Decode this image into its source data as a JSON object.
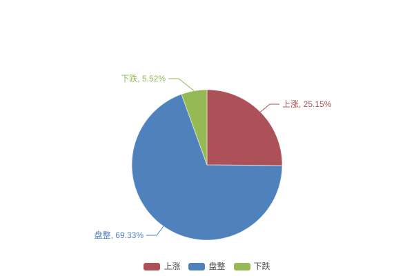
{
  "chart_data": {
    "type": "pie",
    "title": "",
    "background": "#ffffff",
    "start_angle": "12-o-clock-clockwise",
    "value_unit": "%",
    "slices": [
      {
        "name": "上涨",
        "value": 25.15,
        "pct_label": "25.15%",
        "label": "上涨, 25.15%",
        "color": "#AC5157"
      },
      {
        "name": "盘整",
        "value": 69.33,
        "pct_label": "69.33%",
        "label": "盘整, 69.33%",
        "color": "#4F81BD"
      },
      {
        "name": "下跌",
        "value": 5.52,
        "pct_label": "5.52%",
        "label": "下跌, 5.52%",
        "color": "#94B955"
      }
    ],
    "legend": {
      "position": "bottom-center",
      "items": [
        "上涨",
        "盘整",
        "下跌"
      ]
    }
  }
}
